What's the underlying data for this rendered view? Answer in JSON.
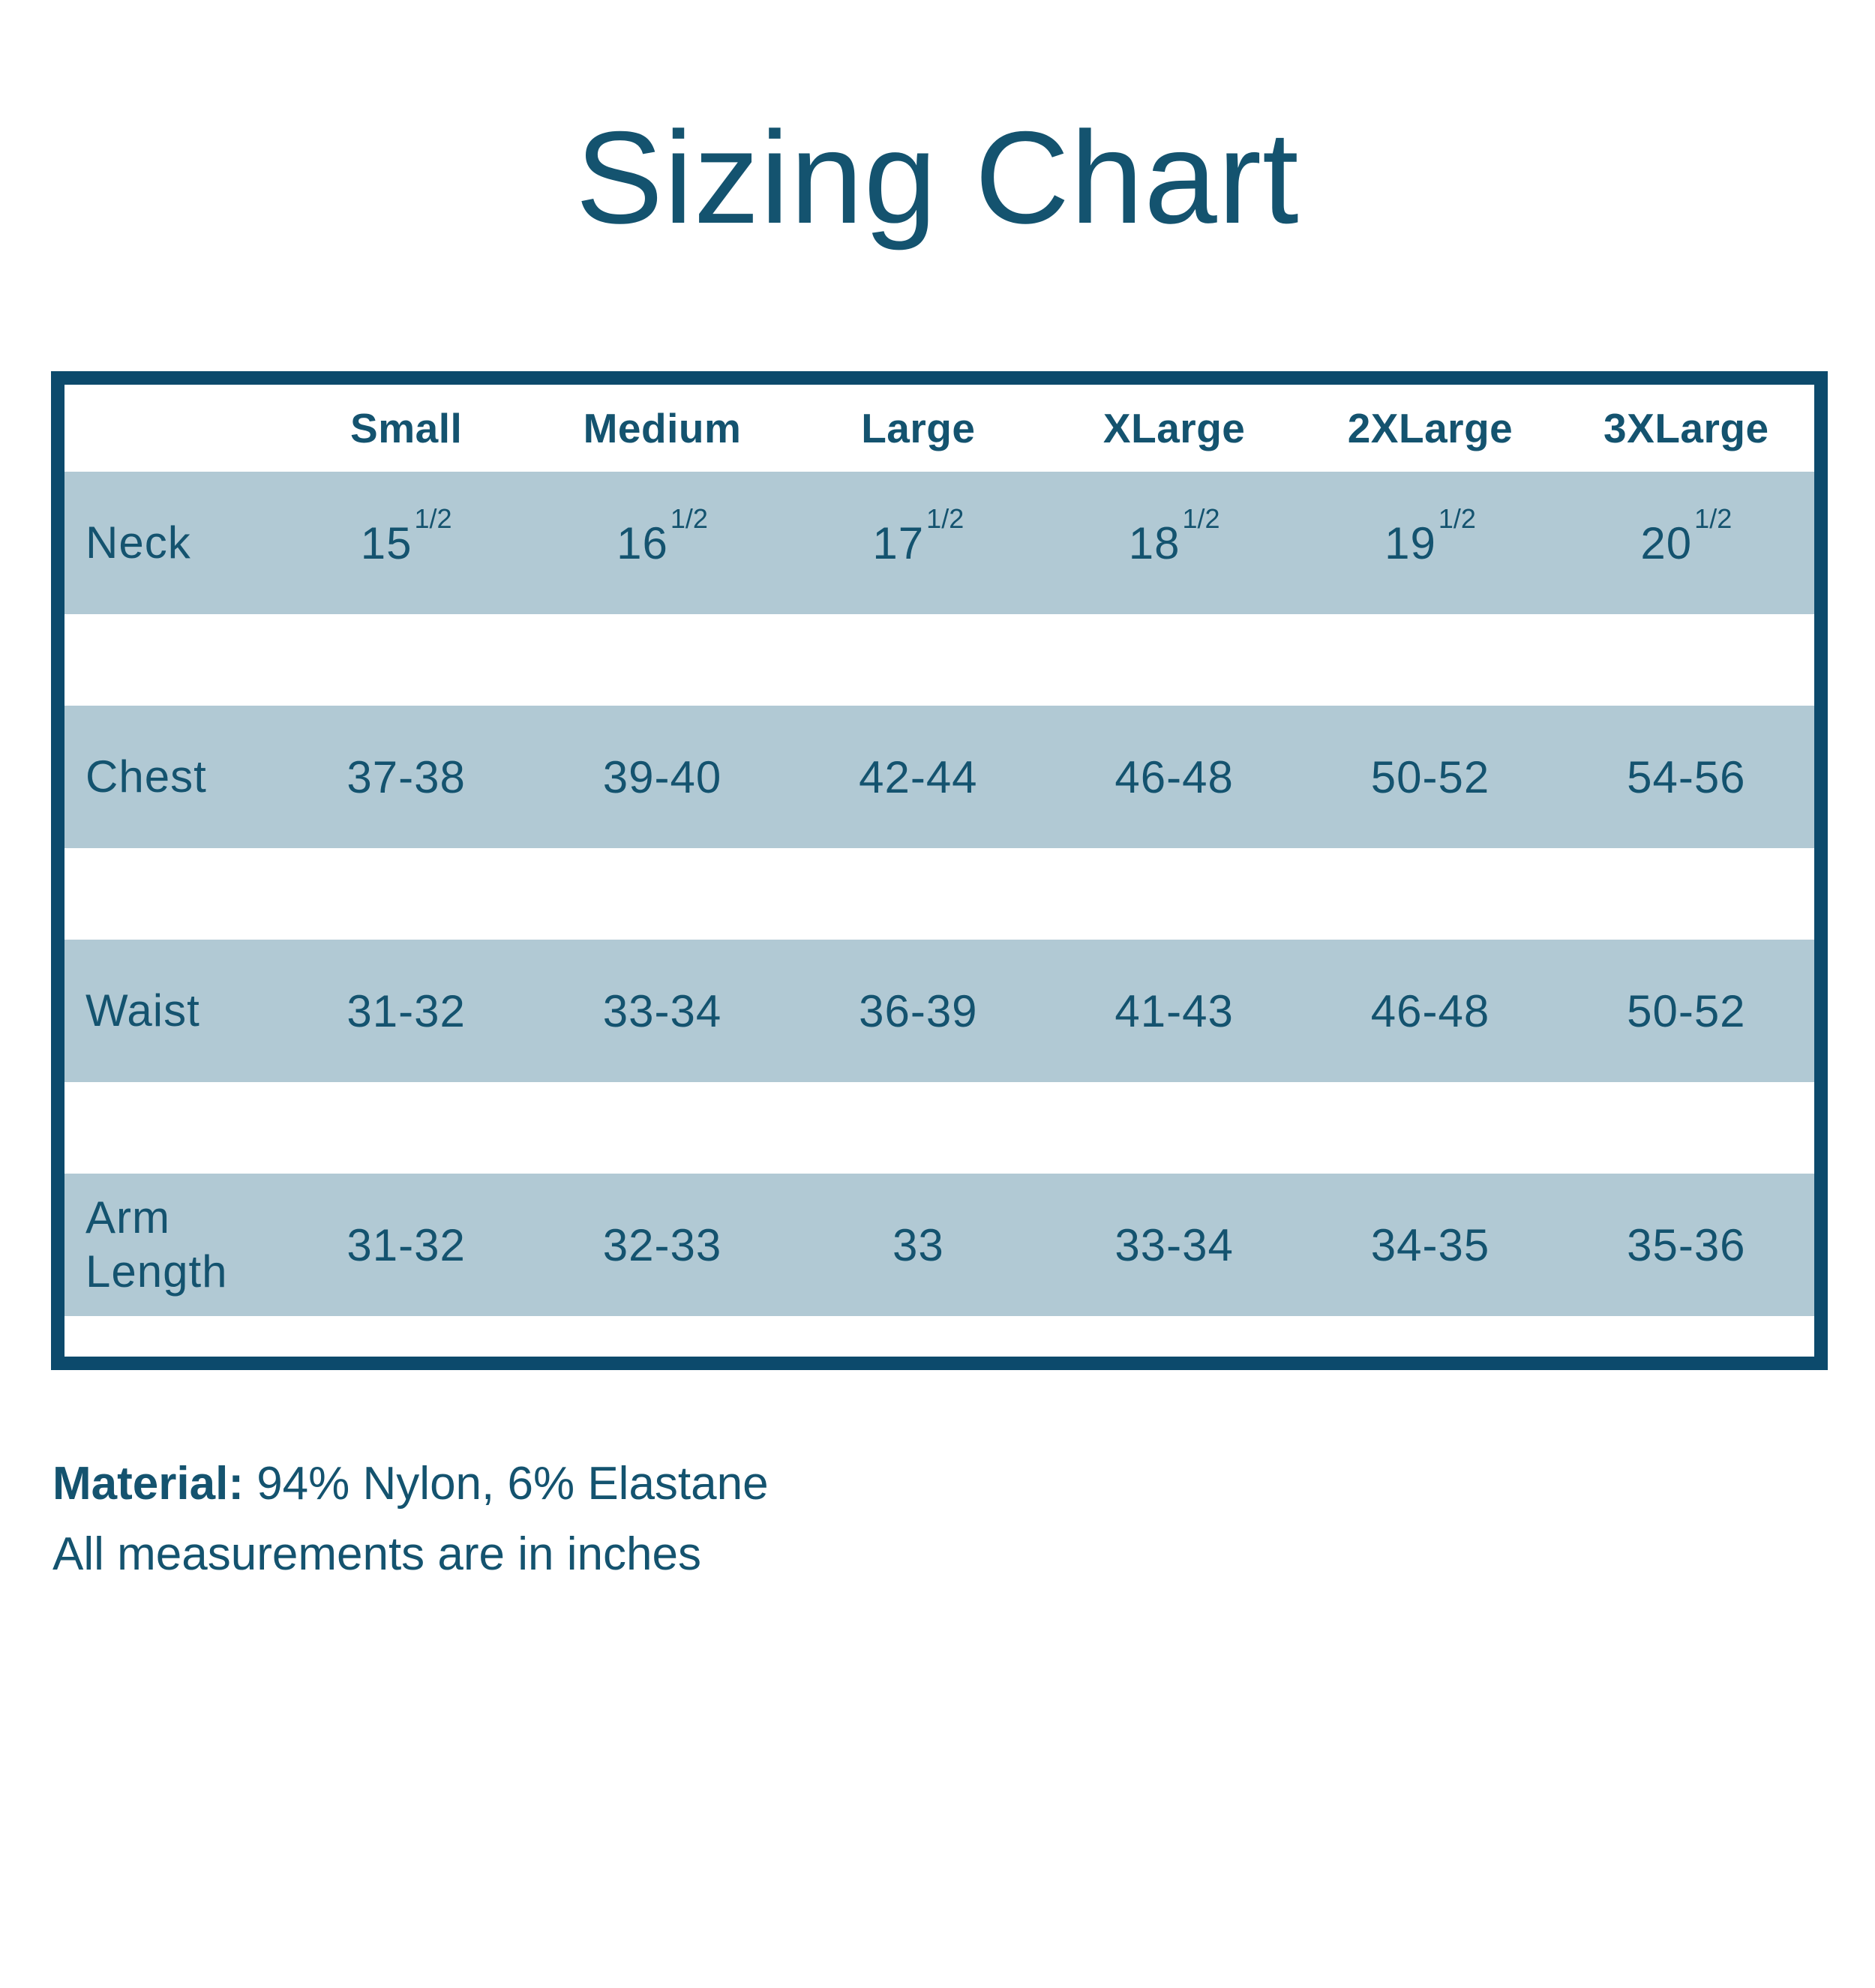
{
  "page": {
    "title": "Sizing Chart"
  },
  "colors": {
    "text": "#14536F",
    "border": "#0C4A6C",
    "band": "#B1C9D4",
    "background": "#FFFFFF"
  },
  "chart_data": {
    "type": "table",
    "title": "Sizing Chart",
    "columns": [
      "Small",
      "Medium",
      "Large",
      "XLarge",
      "2XLarge",
      "3XLarge"
    ],
    "rows": [
      {
        "label": "Neck",
        "values": [
          "15^1/2",
          "16^1/2",
          "17^1/2",
          "18^1/2",
          "19^1/2",
          "20^1/2"
        ]
      },
      {
        "label": "Chest",
        "values": [
          "37-38",
          "39-40",
          "42-44",
          "46-48",
          "50-52",
          "54-56"
        ]
      },
      {
        "label": "Waist",
        "values": [
          "31-32",
          "33-34",
          "36-39",
          "41-43",
          "46-48",
          "50-52"
        ]
      },
      {
        "label": "Arm Length",
        "values": [
          "31-32",
          "32-33",
          "33",
          "33-34",
          "34-35",
          "35-36"
        ]
      }
    ]
  },
  "footer": {
    "material_label": "Material:",
    "material_value": "94% Nylon, 6% Elastane",
    "note": "All measurements are in inches"
  }
}
